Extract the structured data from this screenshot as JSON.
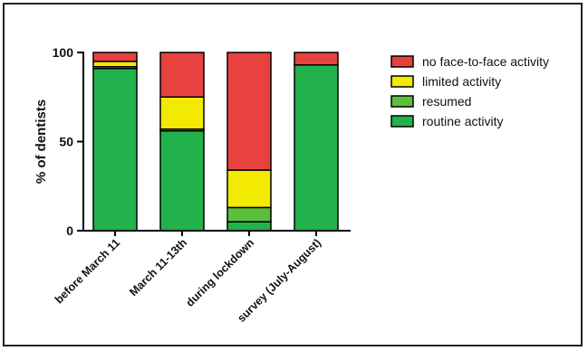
{
  "chart_data": {
    "type": "bar",
    "stacked": true,
    "ylabel": "% of dentists",
    "ylim": [
      0,
      100
    ],
    "yticks": [
      0,
      50,
      100
    ],
    "categories": [
      "before March 11",
      "March 11-13th",
      "during lockdown",
      "survey (July-August)"
    ],
    "series": [
      {
        "name": "routine activity",
        "color": "#22b24c",
        "values": [
          91,
          56,
          5,
          93
        ]
      },
      {
        "name": "resumed",
        "color": "#5cbf3c",
        "values": [
          1,
          1,
          8,
          0
        ]
      },
      {
        "name": "limited activity",
        "color": "#f2ea00",
        "values": [
          3,
          18,
          21,
          0
        ]
      },
      {
        "name": "no face-to-face activity",
        "color": "#e8423f",
        "values": [
          5,
          25,
          66,
          7
        ]
      }
    ],
    "legend_position": "top-right",
    "legend_order": [
      "no face-to-face activity",
      "limited activity",
      "resumed",
      "routine activity"
    ]
  }
}
